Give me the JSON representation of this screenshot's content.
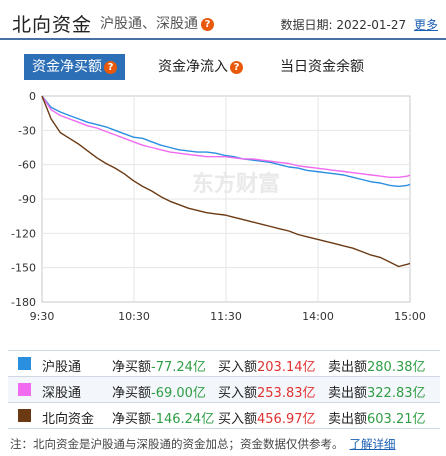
{
  "header": {
    "title": "北向资金",
    "subtitle": "沪股通、深股通",
    "date_label": "数据日期:",
    "date_value": "2022-01-27",
    "more_link": "更多"
  },
  "tabs": [
    {
      "label": "资金净买额",
      "active": true
    },
    {
      "label": "资金净流入",
      "active": false
    },
    {
      "label": "当日资金余额",
      "active": false
    }
  ],
  "watermark": "东方财富",
  "colors": {
    "hgt": "#2b8fe0",
    "sgt": "#f06bf0",
    "north": "#6b3a14",
    "tab_active": "#2c6fb7",
    "positive": "#e03131",
    "negative": "#2f9e44"
  },
  "chart_data": {
    "type": "line",
    "x_ticks": [
      "9:30",
      "10:30",
      "11:30",
      "14:00",
      "15:00"
    ],
    "ylim": [
      -180,
      0
    ],
    "y_ticks": [
      0,
      -30,
      -60,
      -90,
      -120,
      -150,
      -180
    ],
    "grid": true,
    "series": [
      {
        "name": "沪股通",
        "color": "#2b8fe0",
        "points": [
          [
            0,
            0
          ],
          [
            4,
            -10
          ],
          [
            8,
            -14
          ],
          [
            12,
            -17
          ],
          [
            16,
            -20
          ],
          [
            20,
            -23
          ],
          [
            24,
            -25
          ],
          [
            28,
            -27
          ],
          [
            32,
            -30
          ],
          [
            36,
            -33
          ],
          [
            40,
            -36
          ],
          [
            44,
            -37
          ],
          [
            48,
            -40
          ],
          [
            52,
            -43
          ],
          [
            56,
            -45
          ],
          [
            60,
            -47
          ],
          [
            64,
            -48
          ],
          [
            68,
            -49
          ],
          [
            72,
            -49
          ],
          [
            76,
            -50
          ],
          [
            80,
            -52
          ],
          [
            84,
            -53
          ],
          [
            88,
            -55
          ],
          [
            92,
            -56
          ],
          [
            96,
            -57
          ],
          [
            100,
            -58
          ],
          [
            104,
            -60
          ],
          [
            108,
            -62
          ],
          [
            112,
            -63
          ],
          [
            116,
            -65
          ],
          [
            120,
            -66
          ],
          [
            124,
            -67
          ],
          [
            128,
            -68
          ],
          [
            132,
            -69
          ],
          [
            136,
            -71
          ],
          [
            140,
            -73
          ],
          [
            144,
            -75
          ],
          [
            148,
            -76
          ],
          [
            152,
            -78
          ],
          [
            156,
            -79
          ],
          [
            160,
            -78
          ],
          [
            161,
            -77.24
          ]
        ]
      },
      {
        "name": "深股通",
        "color": "#f06bf0",
        "points": [
          [
            0,
            0
          ],
          [
            4,
            -12
          ],
          [
            8,
            -17
          ],
          [
            12,
            -20
          ],
          [
            16,
            -23
          ],
          [
            20,
            -26
          ],
          [
            24,
            -28
          ],
          [
            28,
            -31
          ],
          [
            32,
            -34
          ],
          [
            36,
            -37
          ],
          [
            40,
            -40
          ],
          [
            44,
            -43
          ],
          [
            48,
            -45
          ],
          [
            52,
            -47
          ],
          [
            56,
            -49
          ],
          [
            60,
            -50
          ],
          [
            64,
            -51
          ],
          [
            68,
            -52
          ],
          [
            72,
            -53
          ],
          [
            76,
            -53
          ],
          [
            80,
            -53
          ],
          [
            84,
            -54
          ],
          [
            88,
            -55
          ],
          [
            92,
            -55
          ],
          [
            96,
            -56
          ],
          [
            100,
            -57
          ],
          [
            104,
            -58
          ],
          [
            108,
            -59
          ],
          [
            112,
            -61
          ],
          [
            116,
            -62
          ],
          [
            120,
            -63
          ],
          [
            124,
            -64
          ],
          [
            128,
            -65
          ],
          [
            132,
            -66
          ],
          [
            136,
            -67
          ],
          [
            140,
            -68
          ],
          [
            144,
            -69
          ],
          [
            148,
            -70
          ],
          [
            152,
            -71
          ],
          [
            156,
            -71
          ],
          [
            160,
            -70
          ],
          [
            161,
            -69.0
          ]
        ]
      },
      {
        "name": "北向资金",
        "color": "#6b3a14",
        "points": [
          [
            0,
            0
          ],
          [
            4,
            -20
          ],
          [
            8,
            -32
          ],
          [
            12,
            -37
          ],
          [
            16,
            -42
          ],
          [
            20,
            -48
          ],
          [
            24,
            -54
          ],
          [
            28,
            -59
          ],
          [
            32,
            -63
          ],
          [
            36,
            -68
          ],
          [
            40,
            -74
          ],
          [
            44,
            -79
          ],
          [
            48,
            -83
          ],
          [
            52,
            -88
          ],
          [
            56,
            -92
          ],
          [
            60,
            -95
          ],
          [
            64,
            -98
          ],
          [
            68,
            -100
          ],
          [
            72,
            -102
          ],
          [
            76,
            -103
          ],
          [
            80,
            -104
          ],
          [
            84,
            -106
          ],
          [
            88,
            -108
          ],
          [
            92,
            -110
          ],
          [
            96,
            -112
          ],
          [
            100,
            -114
          ],
          [
            104,
            -116
          ],
          [
            108,
            -118
          ],
          [
            112,
            -121
          ],
          [
            116,
            -123
          ],
          [
            120,
            -125
          ],
          [
            124,
            -127
          ],
          [
            128,
            -129
          ],
          [
            132,
            -131
          ],
          [
            136,
            -133
          ],
          [
            140,
            -136
          ],
          [
            144,
            -139
          ],
          [
            148,
            -141
          ],
          [
            152,
            -145
          ],
          [
            156,
            -149
          ],
          [
            160,
            -147
          ],
          [
            161,
            -146.24
          ]
        ]
      }
    ]
  },
  "summary": [
    {
      "name": "沪股通",
      "net_label": "净买额",
      "net_value": "-77.24亿",
      "buy_label": "买入额",
      "buy_value": "203.14亿",
      "sell_label": "卖出额",
      "sell_value": "280.38亿"
    },
    {
      "name": "深股通",
      "net_label": "净买额",
      "net_value": "-69.00亿",
      "buy_label": "买入额",
      "buy_value": "253.83亿",
      "sell_label": "卖出额",
      "sell_value": "322.83亿"
    },
    {
      "name": "北向资金",
      "net_label": "净买额",
      "net_value": "-146.24亿",
      "buy_label": "买入额",
      "buy_value": "456.97亿",
      "sell_label": "卖出额",
      "sell_value": "603.21亿"
    }
  ],
  "footnote": {
    "text": "注：北向资金是沪股通与深股通的资金加总；资金数据仅供参考。",
    "link": "了解详细"
  }
}
